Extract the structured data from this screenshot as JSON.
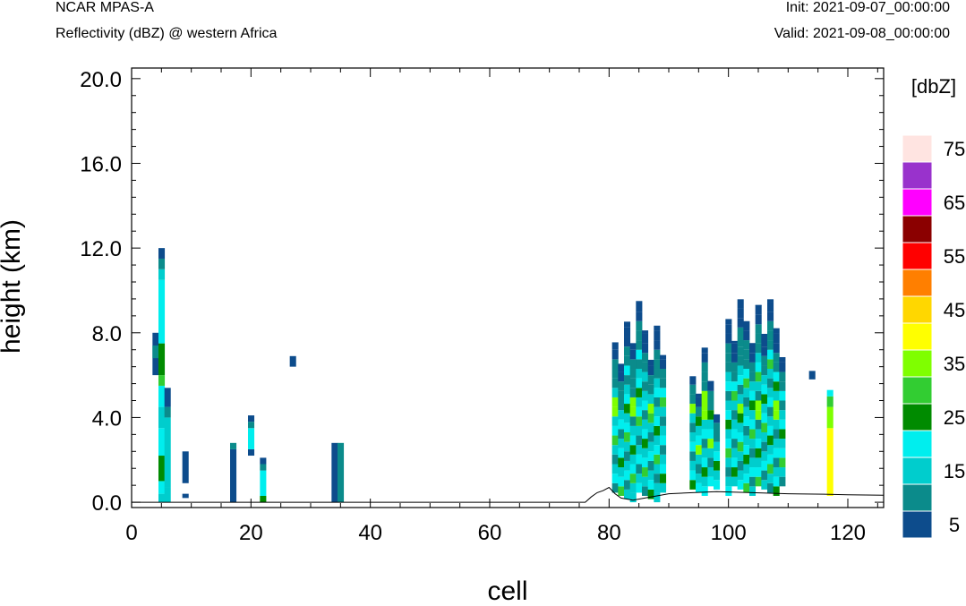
{
  "header": {
    "model": "NCAR MPAS-A",
    "field": "Reflectivity (dBZ) @ western Africa",
    "init": "Init: 2021-09-07_00:00:00",
    "valid": "Valid: 2021-09-08_00:00:00"
  },
  "chart_data": {
    "type": "heatmap",
    "title": "Reflectivity (dBZ) @ western Africa",
    "xlabel": "cell",
    "ylabel": "height (km)",
    "xlim": [
      0,
      126
    ],
    "ylim": [
      -0.25,
      20.5
    ],
    "xticks": [
      "0",
      "20",
      "40",
      "60",
      "80",
      "100",
      "120"
    ],
    "yticks": [
      "0.0",
      "4.0",
      "8.0",
      "12.0",
      "16.0",
      "20.0"
    ],
    "colorbar": {
      "unit": "[dbZ]",
      "levels": [
        5,
        10,
        15,
        20,
        25,
        30,
        35,
        40,
        45,
        50,
        55,
        60,
        65,
        70,
        75
      ],
      "labels": [
        "5",
        "15",
        "25",
        "35",
        "45",
        "55",
        "65",
        "75"
      ],
      "colors": [
        "#0d4c8c",
        "#0b8b8b",
        "#00cdcd",
        "#00eeee",
        "#008b00",
        "#32cd32",
        "#7fff00",
        "#ffff00",
        "#ffd700",
        "#ff7f00",
        "#ff0000",
        "#8b0000",
        "#ff00ff",
        "#9932cc",
        "#ffe4e1"
      ]
    },
    "columns": [
      {
        "cell": 4,
        "segments": [
          [
            6.0,
            8.0,
            5
          ],
          [
            6.8,
            7.4,
            10
          ]
        ]
      },
      {
        "cell": 5,
        "segments": [
          [
            0.0,
            0.4,
            15
          ],
          [
            0.4,
            1.0,
            20
          ],
          [
            1.0,
            2.2,
            25
          ],
          [
            2.2,
            3.5,
            20
          ],
          [
            3.5,
            4.5,
            15
          ],
          [
            4.5,
            5.5,
            20
          ],
          [
            5.5,
            6.0,
            30
          ],
          [
            6.0,
            7.5,
            25
          ],
          [
            7.5,
            10.5,
            20
          ],
          [
            10.5,
            11.0,
            15
          ],
          [
            11.0,
            11.5,
            10
          ],
          [
            11.5,
            12.0,
            5
          ]
        ]
      },
      {
        "cell": 6,
        "segments": [
          [
            0.0,
            0.7,
            15
          ],
          [
            0.7,
            4.0,
            15
          ],
          [
            4.0,
            4.5,
            10
          ],
          [
            4.5,
            5.4,
            5
          ]
        ]
      },
      {
        "cell": 9,
        "segments": [
          [
            0.2,
            0.4,
            5
          ],
          [
            0.9,
            2.4,
            5
          ]
        ]
      },
      {
        "cell": 17,
        "segments": [
          [
            0.0,
            2.5,
            5
          ],
          [
            2.5,
            2.8,
            10
          ]
        ]
      },
      {
        "cell": 20,
        "segments": [
          [
            2.2,
            2.5,
            5
          ],
          [
            2.5,
            3.5,
            20
          ],
          [
            3.5,
            3.8,
            10
          ],
          [
            3.8,
            4.1,
            5
          ]
        ]
      },
      {
        "cell": 22,
        "segments": [
          [
            0.0,
            0.3,
            25
          ],
          [
            0.3,
            1.5,
            20
          ],
          [
            1.5,
            1.8,
            10
          ],
          [
            1.8,
            2.1,
            5
          ]
        ]
      },
      {
        "cell": 27,
        "segments": [
          [
            6.4,
            6.9,
            5
          ]
        ]
      },
      {
        "cell": 34,
        "segments": [
          [
            0.0,
            2.8,
            5
          ]
        ]
      },
      {
        "cell": 35,
        "segments": [
          [
            0.0,
            2.8,
            10
          ]
        ]
      },
      {
        "cell": 114,
        "segments": [
          [
            5.8,
            6.2,
            5
          ]
        ]
      },
      {
        "cell": 117,
        "segments": [
          [
            0.3,
            3.5,
            40
          ],
          [
            3.5,
            4.5,
            35
          ],
          [
            4.5,
            5.0,
            30
          ],
          [
            5.0,
            5.3,
            20
          ]
        ]
      }
    ],
    "blocks": [
      {
        "x": [
          81,
          89
        ],
        "y": [
          0.0,
          9.5
        ],
        "levels": [
          5,
          10,
          15,
          20,
          25,
          30,
          35
        ]
      },
      {
        "x": [
          94,
          98
        ],
        "y": [
          0.3,
          7.3
        ],
        "levels": [
          5,
          10,
          15,
          20,
          25,
          35
        ]
      },
      {
        "x": [
          100,
          109
        ],
        "y": [
          0.3,
          10.0
        ],
        "levels": [
          5,
          10,
          15,
          20,
          25,
          30,
          35
        ]
      }
    ],
    "terrain": [
      [
        0,
        0
      ],
      [
        76,
        0
      ],
      [
        77,
        0.25
      ],
      [
        78,
        0.45
      ],
      [
        79,
        0.55
      ],
      [
        80,
        0.7
      ],
      [
        81,
        0.4
      ],
      [
        82,
        0.2
      ],
      [
        84,
        0.1
      ],
      [
        86,
        0.2
      ],
      [
        88,
        0.3
      ],
      [
        90,
        0.4
      ],
      [
        94,
        0.45
      ],
      [
        98,
        0.5
      ],
      [
        104,
        0.45
      ],
      [
        110,
        0.4
      ],
      [
        116,
        0.38
      ],
      [
        120,
        0.35
      ],
      [
        126,
        0.33
      ]
    ]
  }
}
